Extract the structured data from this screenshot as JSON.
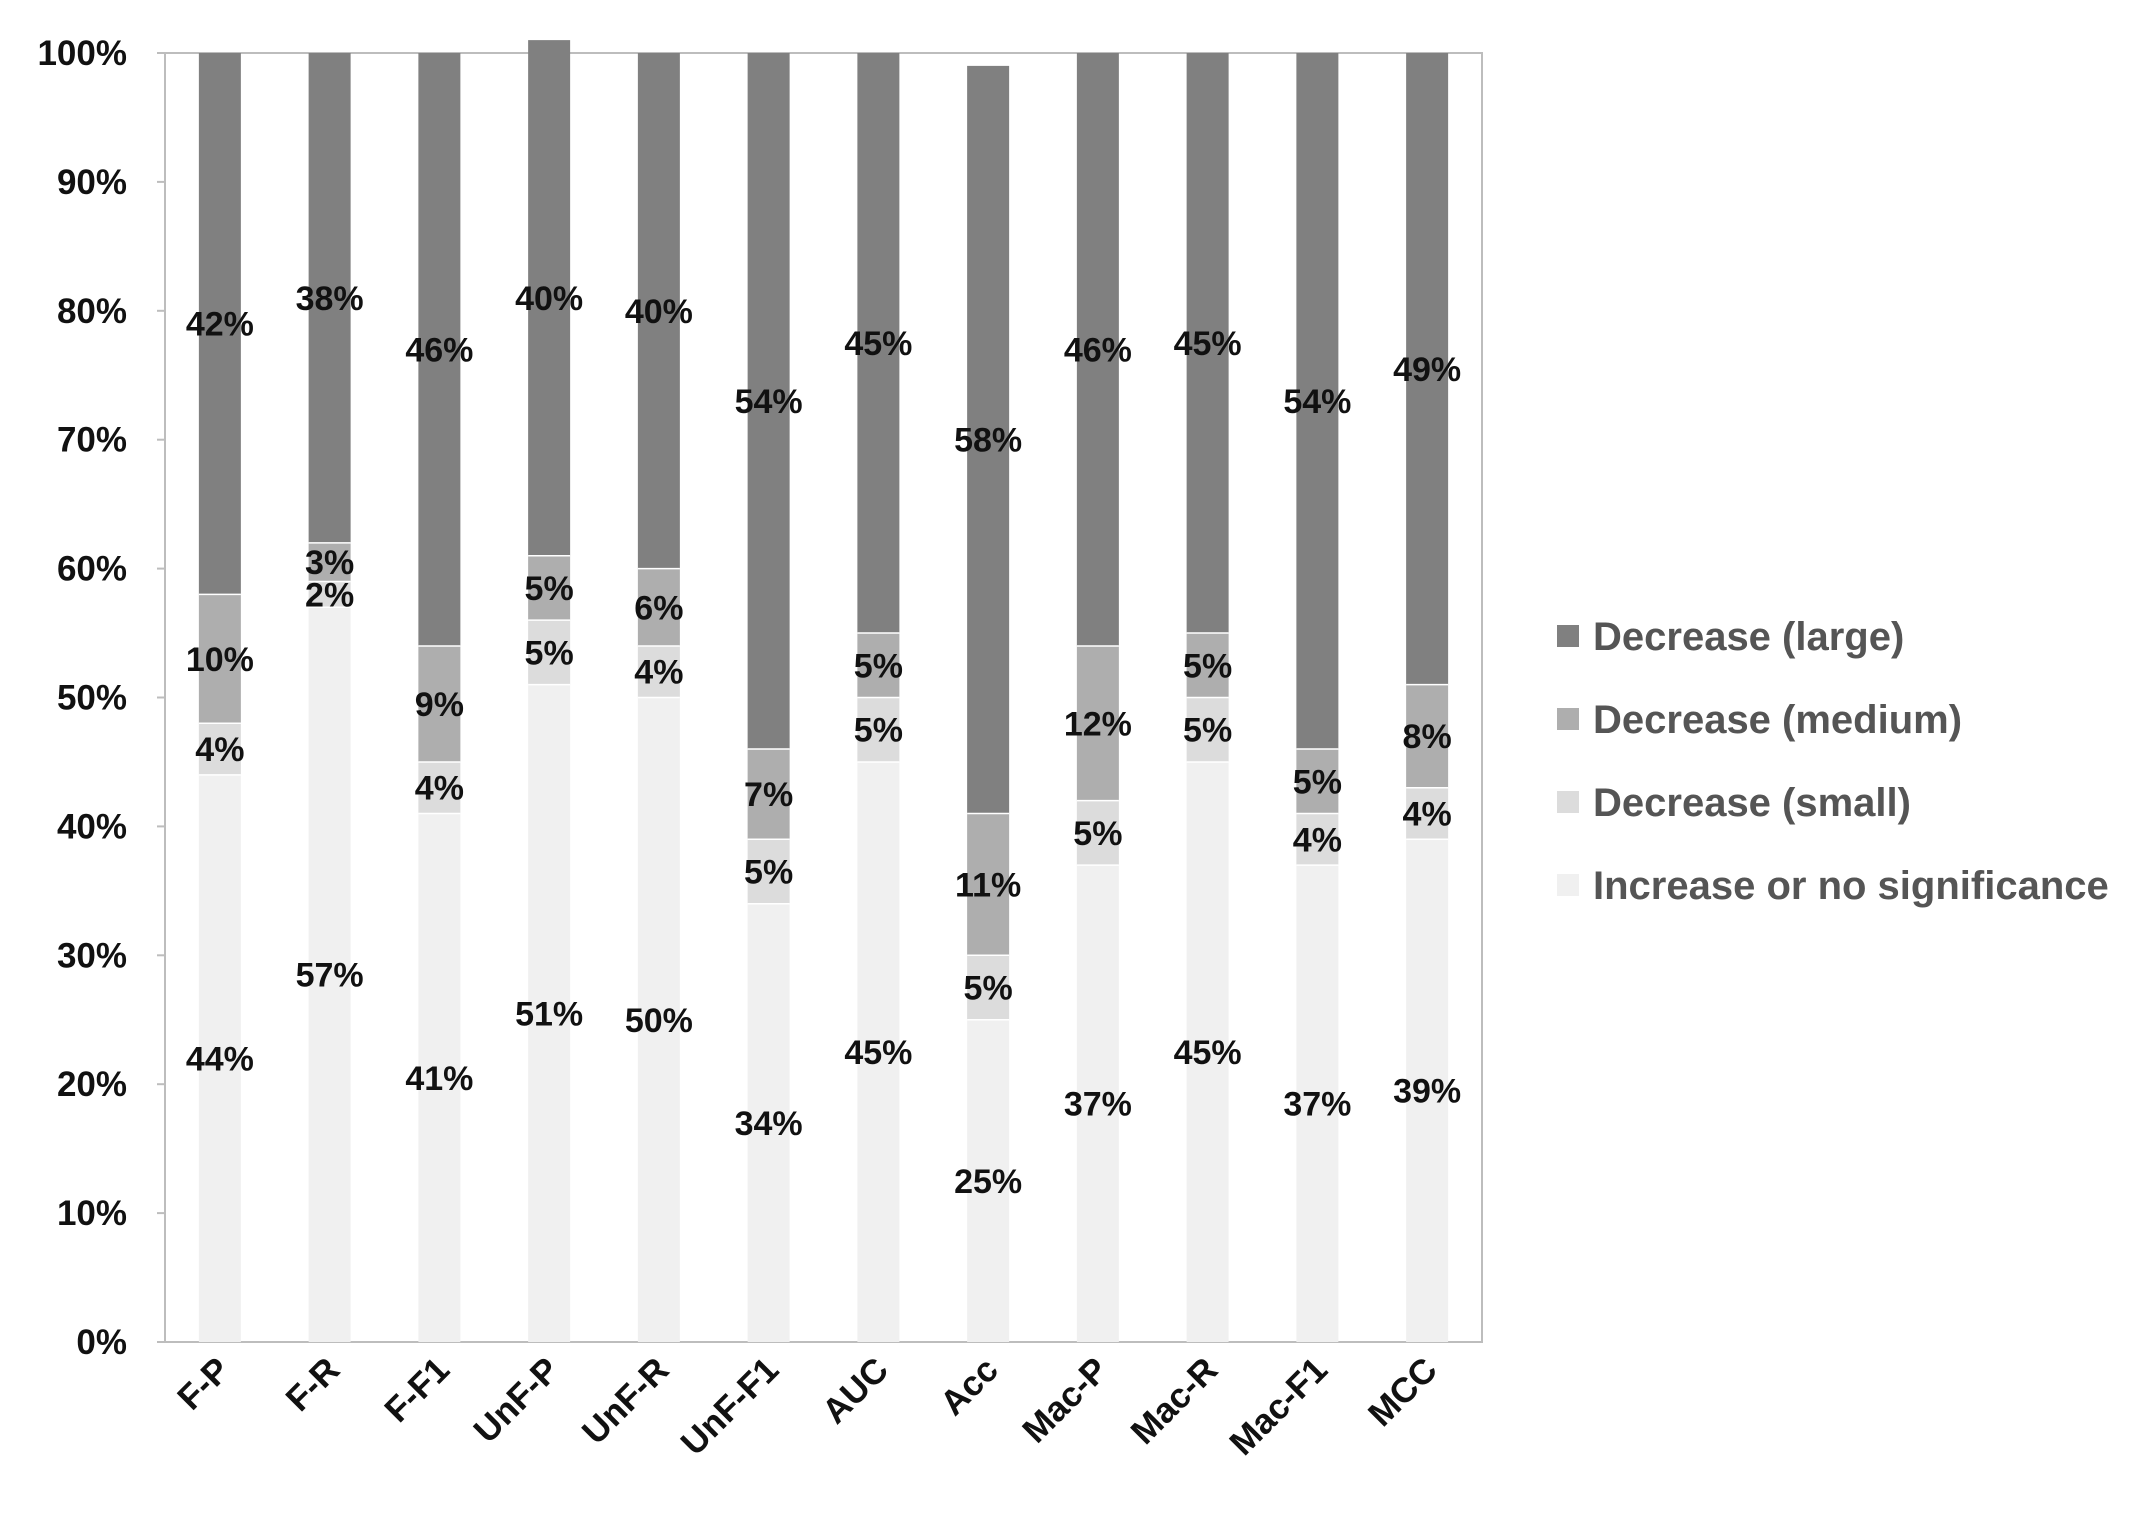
{
  "chart_data": {
    "type": "bar",
    "stacked": true,
    "normalized": true,
    "categories": [
      "F-P",
      "F-R",
      "F-F1",
      "UnF-P",
      "UnF-R",
      "UnF-F1",
      "AUC",
      "Acc",
      "Mac-P",
      "Mac-R",
      "Mac-F1",
      "MCC"
    ],
    "series": [
      {
        "name": "Increase or no significance",
        "color": "#f0f0f0",
        "values": [
          44,
          57,
          41,
          51,
          50,
          34,
          45,
          25,
          37,
          45,
          37,
          39
        ],
        "labels": [
          "44%",
          "57%",
          "41%",
          "51%",
          "50%",
          "34%",
          "45%",
          "25%",
          "37%",
          "45%",
          "37%",
          "39%"
        ]
      },
      {
        "name": "Decrease (small)",
        "color": "#dcdcdc",
        "values": [
          4,
          2,
          4,
          5,
          4,
          5,
          5,
          5,
          5,
          5,
          4,
          4
        ],
        "labels": [
          "4%",
          "2%",
          "4%",
          "5%",
          "4%",
          "5%",
          "5%",
          "5%",
          "5%",
          "5%",
          "4%",
          "4%"
        ]
      },
      {
        "name": "Decrease (medium)",
        "color": "#aeaeae",
        "values": [
          10,
          3,
          9,
          5,
          6,
          7,
          5,
          11,
          12,
          5,
          5,
          8
        ],
        "labels": [
          "10%",
          "3%",
          "9%",
          "5%",
          "6%",
          "7%",
          "5%",
          "11%",
          "12%",
          "5%",
          "5%",
          "8%"
        ]
      },
      {
        "name": "Decrease (large)",
        "color": "#808080",
        "values": [
          42,
          38,
          46,
          40,
          40,
          54,
          45,
          58,
          46,
          45,
          54,
          49
        ],
        "labels": [
          "42%",
          "38%",
          "46%",
          "40%",
          "40%",
          "54%",
          "45%",
          "58%",
          "46%",
          "45%",
          "54%",
          "49%"
        ]
      }
    ],
    "yticks": [
      "0%",
      "10%",
      "20%",
      "30%",
      "40%",
      "50%",
      "60%",
      "70%",
      "80%",
      "90%",
      "100%"
    ],
    "ylim": [
      0,
      100
    ],
    "title": "",
    "xlabel": "",
    "ylabel": "",
    "grid": false,
    "legend_position": "right",
    "legend_order": [
      "Decrease (large)",
      "Decrease (medium)",
      "Decrease (small)",
      "Increase or no significance"
    ]
  }
}
